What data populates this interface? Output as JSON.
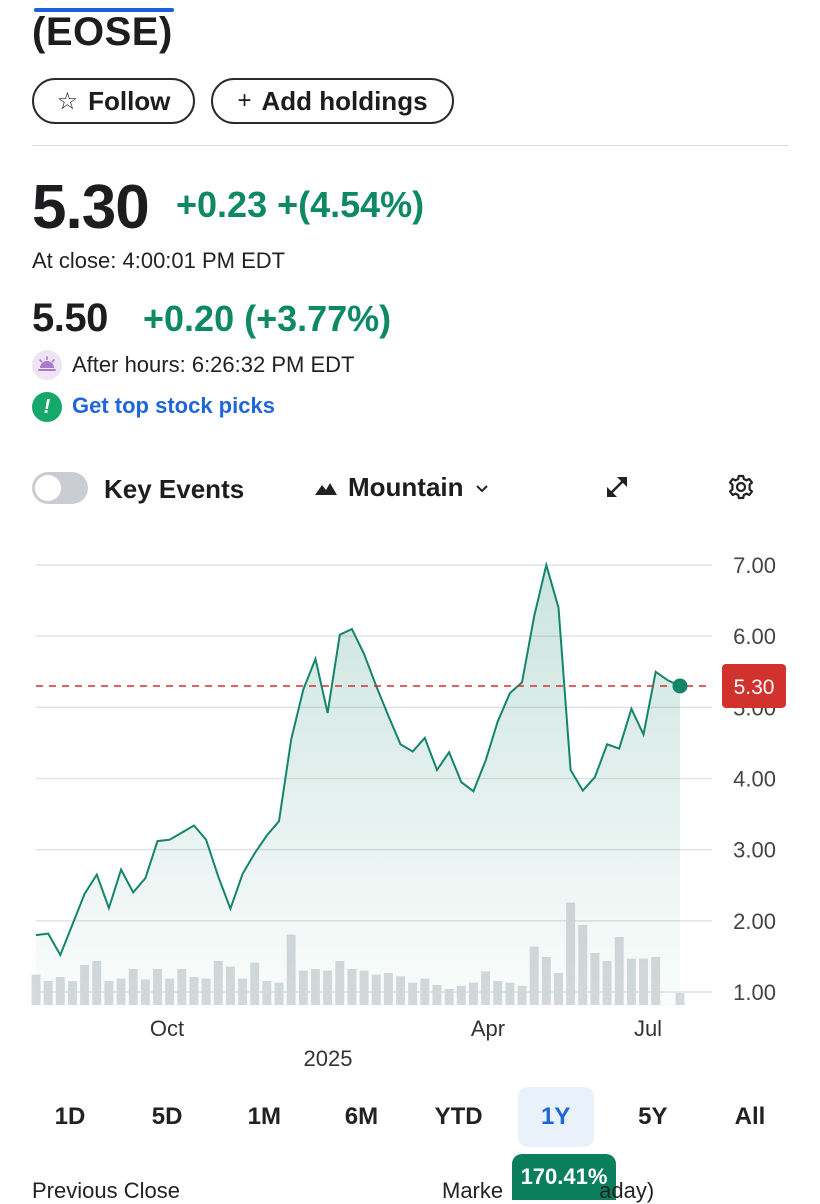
{
  "header": {
    "ticker": "(EOSE)",
    "follow_label": "Follow",
    "follow_icon": "star-outline-icon",
    "add_label": "Add holdings",
    "add_icon": "plus-icon"
  },
  "quote": {
    "price": "5.30",
    "change": "+0.23 +(4.54%)",
    "close_time": "At close: 4:00:01 PM EDT",
    "after_hours_price": "5.50",
    "after_hours_change": "+0.20 (+3.77%)",
    "after_hours_time": "After hours: 6:26:32 PM EDT",
    "after_hours_icon": "sunset-icon",
    "picks_link": "Get top stock picks",
    "picks_icon": "exclamation-icon",
    "positive_color": "#0d8a63"
  },
  "controls": {
    "key_events_label": "Key Events",
    "key_events_on": false,
    "chart_type_label": "Mountain",
    "chart_type_icon": "mountain-icon",
    "expand_icon": "expand-icon",
    "settings_icon": "gear-icon"
  },
  "chart_data": {
    "type": "area",
    "y_ticks": [
      "7.00",
      "6.00",
      "5.00",
      "4.00",
      "3.00",
      "2.00",
      "1.00"
    ],
    "ylim": [
      0.8,
      7.3
    ],
    "x_labels": [
      "Oct",
      "Apr",
      "Jul"
    ],
    "year_label": "2025",
    "current_value_label": "5.30",
    "reference_line": 5.3,
    "line_color": "#14856a",
    "reference_color": "#d1322e",
    "x": [
      0,
      1,
      2,
      3,
      4,
      5,
      6,
      7,
      8,
      9,
      10,
      11,
      12,
      13,
      14,
      15,
      16,
      17,
      18,
      19,
      20,
      21,
      22,
      23,
      24,
      25,
      26,
      27,
      28,
      29,
      30,
      31,
      32,
      33,
      34,
      35,
      36,
      37,
      38,
      39,
      40,
      41,
      42,
      43,
      44,
      45,
      46,
      47,
      48,
      49,
      50,
      51,
      52,
      53
    ],
    "y": [
      1.8,
      1.82,
      1.52,
      1.95,
      2.38,
      2.65,
      2.18,
      2.72,
      2.4,
      2.6,
      3.12,
      3.14,
      3.24,
      3.34,
      3.14,
      2.62,
      2.17,
      2.66,
      2.95,
      3.2,
      3.4,
      4.55,
      5.25,
      5.68,
      4.92,
      6.02,
      6.1,
      5.75,
      5.3,
      4.88,
      4.48,
      4.38,
      4.57,
      4.12,
      4.37,
      3.95,
      3.82,
      4.25,
      4.8,
      5.2,
      5.35,
      6.28,
      7.0,
      6.4,
      4.12,
      3.83,
      4.02,
      4.48,
      4.42,
      4.98,
      4.62,
      5.5,
      5.38,
      5.3
    ],
    "volume": [
      0.38,
      0.3,
      0.35,
      0.3,
      0.5,
      0.55,
      0.3,
      0.33,
      0.45,
      0.32,
      0.45,
      0.33,
      0.45,
      0.35,
      0.33,
      0.55,
      0.48,
      0.33,
      0.53,
      0.3,
      0.28,
      0.88,
      0.43,
      0.45,
      0.43,
      0.55,
      0.45,
      0.43,
      0.38,
      0.4,
      0.36,
      0.28,
      0.33,
      0.25,
      0.2,
      0.24,
      0.28,
      0.42,
      0.3,
      0.28,
      0.24,
      0.73,
      0.6,
      0.4,
      1.28,
      1.0,
      0.65,
      0.55,
      0.85,
      0.58,
      0.58,
      0.6,
      0.0,
      0.15
    ],
    "volume_color": "#d6dadd"
  },
  "ranges": {
    "items": [
      "1D",
      "5D",
      "1M",
      "6M",
      "YTD",
      "1Y",
      "5Y",
      "All"
    ],
    "active": "1Y",
    "active_change": "170.41%"
  },
  "footer": {
    "left_label": "Previous Close",
    "right_label_start": "Marke",
    "right_label_end": "aday)"
  }
}
